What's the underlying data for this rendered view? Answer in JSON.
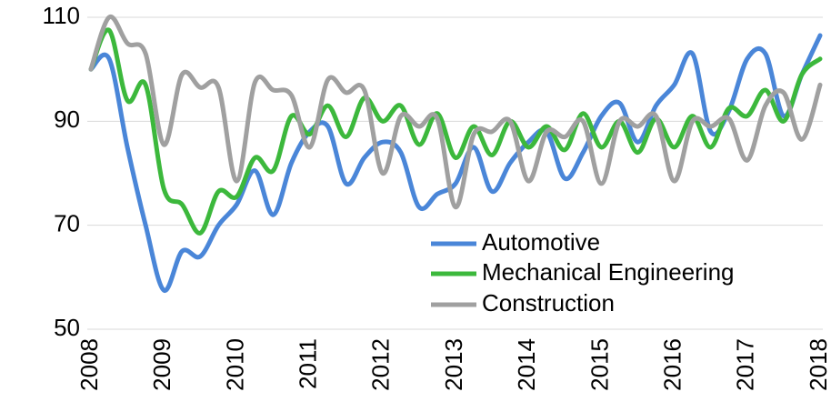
{
  "chart_data": {
    "type": "line",
    "categories": [
      "2008",
      null,
      null,
      null,
      "2009",
      null,
      null,
      null,
      "2010",
      null,
      null,
      null,
      "2011",
      null,
      null,
      null,
      "2012",
      null,
      null,
      null,
      "2013",
      null,
      null,
      null,
      "2014",
      null,
      null,
      null,
      "2015",
      null,
      null,
      null,
      "2016",
      null,
      null,
      null,
      "2017",
      null,
      null,
      null,
      "2018"
    ],
    "series": [
      {
        "name": "Automotive",
        "color": "#4a86d8",
        "values": [
          100,
          102,
          85,
          70,
          57.5,
          65,
          64,
          70,
          74,
          80.5,
          72,
          82,
          88,
          89,
          78,
          83,
          86,
          84,
          73.5,
          76,
          78,
          85,
          76.5,
          82,
          86,
          88,
          79,
          84,
          91,
          93.5,
          86,
          93,
          97,
          103,
          88,
          92,
          102,
          103,
          91,
          99,
          106.5
        ]
      },
      {
        "name": "Mechanical Engineering",
        "color": "#3cb83c",
        "values": [
          100,
          107.5,
          94,
          97,
          77,
          74,
          68.5,
          76.5,
          75.5,
          83,
          80.5,
          91,
          87.5,
          93,
          87,
          94.5,
          90,
          93,
          85.5,
          91.5,
          83,
          89,
          83.5,
          90,
          85,
          89,
          84.5,
          91.5,
          85,
          90,
          84,
          90.5,
          85,
          91,
          85,
          92.5,
          91,
          96,
          90,
          99,
          102
        ]
      },
      {
        "name": "Construction",
        "color": "#a0a0a0",
        "values": [
          100,
          110,
          105,
          103,
          85.5,
          99,
          96.5,
          96.5,
          78.5,
          97.5,
          96,
          95,
          85,
          98,
          95.5,
          96,
          80,
          91,
          89,
          90.5,
          73.5,
          87.5,
          88,
          90,
          78.5,
          88,
          87,
          90,
          78,
          90,
          89,
          91,
          78.5,
          90,
          89,
          90.5,
          82.5,
          93,
          95.5,
          86.5,
          97
        ]
      }
    ],
    "ylim": [
      50,
      110
    ],
    "yticks": [
      50,
      70,
      90,
      110
    ],
    "grid": true,
    "legend": "lower right"
  }
}
